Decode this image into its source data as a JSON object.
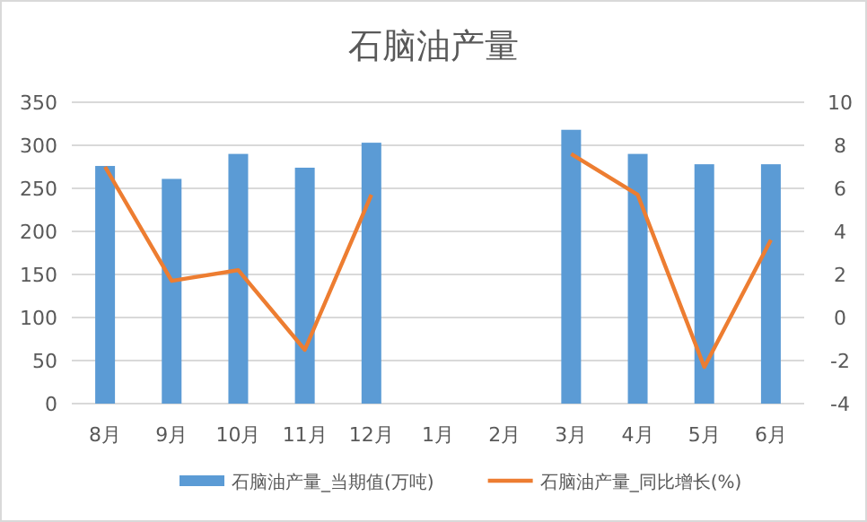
{
  "chart_data": {
    "type": "bar",
    "title": "石脑油产量",
    "categories": [
      "8月",
      "9月",
      "10月",
      "11月",
      "12月",
      "1月",
      "2月",
      "3月",
      "4月",
      "5月",
      "6月"
    ],
    "series": [
      {
        "name": "石脑油产量_当期值(万吨)",
        "color": "#5b9bd5",
        "values": [
          276,
          261,
          290,
          274,
          303,
          null,
          null,
          318,
          290,
          278,
          278
        ]
      },
      {
        "name": "石脑油产量_同比增长(%)",
        "type": "line",
        "axis": "y2",
        "color": "#ed7d31",
        "values": [
          7.0,
          1.7,
          2.2,
          -1.5,
          5.7,
          null,
          null,
          7.6,
          5.7,
          -2.3,
          3.6
        ]
      }
    ],
    "ylim": [
      0,
      350
    ],
    "yticks": [
      0,
      50,
      100,
      150,
      200,
      250,
      300,
      350
    ],
    "y2lim": [
      -4,
      10
    ],
    "y2ticks": [
      -4,
      -2,
      0,
      2,
      4,
      6,
      8,
      10
    ],
    "grid": "y",
    "legend": "bottom",
    "marker": "none",
    "line_style": "solid"
  }
}
